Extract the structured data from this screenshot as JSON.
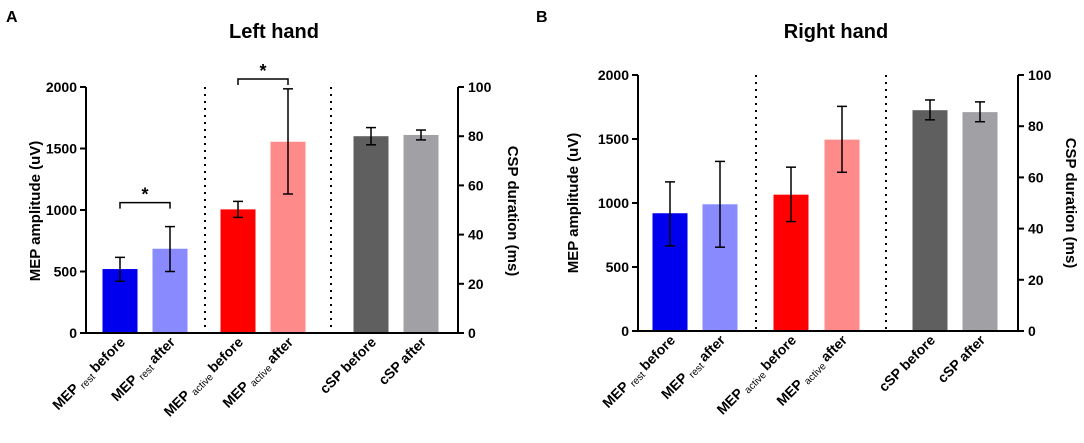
{
  "chart_data": [
    {
      "type": "bar",
      "letter": "A",
      "title": "Left hand",
      "ylabel": "MEP amplitude (uV)",
      "ylabel_right": "CSP duration (ms)",
      "ylim": [
        0,
        2000
      ],
      "yticks": [
        "0",
        "500",
        "1000",
        "1500",
        "2000"
      ],
      "ylim_right": [
        0,
        100
      ],
      "yticks_right": [
        "0",
        "20",
        "40",
        "60",
        "80",
        "100"
      ],
      "categories": [
        {
          "main": "MEP",
          "sub": "rest",
          "suffix": "before"
        },
        {
          "main": "MEP",
          "sub": "rest",
          "suffix": "after"
        },
        {
          "main": "MEP",
          "sub": "active",
          "suffix": "before"
        },
        {
          "main": "MEP",
          "sub": "active",
          "suffix": "after"
        },
        {
          "main": "cSP before",
          "sub": "",
          "suffix": ""
        },
        {
          "main": "cSP after",
          "sub": "",
          "suffix": ""
        }
      ],
      "values": [
        520,
        685,
        1005,
        1555,
        1600,
        1610
      ],
      "err_low": [
        420,
        500,
        940,
        1130,
        1530,
        1570
      ],
      "err_high": [
        615,
        865,
        1070,
        1985,
        1670,
        1650
      ],
      "colors": [
        "#0000ee",
        "#8a8aff",
        "#ff0000",
        "#ff8a8a",
        "#5f5f5f",
        "#a1a1a5"
      ],
      "significance": [
        {
          "between": [
            0,
            1
          ],
          "label": "*",
          "y": 1060
        },
        {
          "between": [
            2,
            3
          ],
          "label": "*",
          "y": 2065
        }
      ]
    },
    {
      "type": "bar",
      "letter": "B",
      "title": "Right hand",
      "ylabel": "MEP amplitude (uV)",
      "ylabel_right": "CSP duration (ms)",
      "ylim": [
        0,
        2000
      ],
      "yticks": [
        "0",
        "500",
        "1000",
        "1500",
        "2000"
      ],
      "ylim_right": [
        0,
        100
      ],
      "yticks_right": [
        "0",
        "20",
        "40",
        "60",
        "80",
        "100"
      ],
      "categories": [
        {
          "main": "MEP",
          "sub": "rest",
          "suffix": "before"
        },
        {
          "main": "MEP",
          "sub": "rest",
          "suffix": "after"
        },
        {
          "main": "MEP",
          "sub": "active",
          "suffix": "before"
        },
        {
          "main": "MEP",
          "sub": "active",
          "suffix": "after"
        },
        {
          "main": "cSP before",
          "sub": "",
          "suffix": ""
        },
        {
          "main": "cSP after",
          "sub": "",
          "suffix": ""
        }
      ],
      "values": [
        920,
        990,
        1065,
        1495,
        1725,
        1710
      ],
      "err_low": [
        665,
        655,
        855,
        1240,
        1650,
        1635
      ],
      "err_high": [
        1165,
        1325,
        1280,
        1755,
        1805,
        1790
      ],
      "colors": [
        "#0000ee",
        "#8a8aff",
        "#ff0000",
        "#ff8a8a",
        "#5f5f5f",
        "#a1a1a5"
      ],
      "significance": []
    }
  ]
}
